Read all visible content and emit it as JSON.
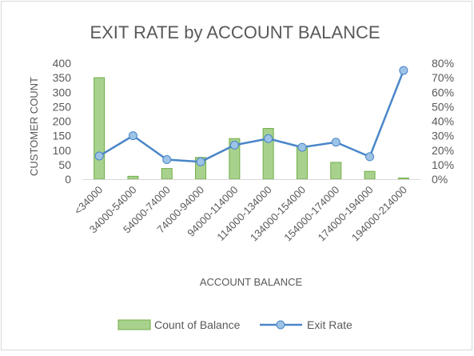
{
  "chart_data": {
    "type": "bar",
    "title": "EXIT RATE by ACCOUNT BALANCE",
    "xlabel": "ACCOUNT BALANCE",
    "ylabel": "CUSTOMER COUNT",
    "y2label": "",
    "categories": [
      "<34000",
      "34000-54000",
      "54000-74000",
      "74000-94000",
      "94000-114000",
      "114000-134000",
      "134000-154000",
      "154000-174000",
      "174000-194000",
      "194000-214000"
    ],
    "ylim": [
      0,
      400
    ],
    "yticks": [
      "0",
      "50",
      "100",
      "150",
      "200",
      "250",
      "300",
      "350",
      "400"
    ],
    "y2lim": [
      0,
      0.8
    ],
    "y2ticks": [
      "0%",
      "10%",
      "20%",
      "30%",
      "40%",
      "50%",
      "60%",
      "70%",
      "80%"
    ],
    "grid": false,
    "legend_position": "bottom",
    "series": [
      {
        "name": "Count of Balance",
        "type": "bar",
        "axis": "left",
        "color": "#a9d18e",
        "edge_color": "#70ad47",
        "values": [
          350,
          10,
          37,
          75,
          140,
          175,
          115,
          58,
          27,
          4
        ]
      },
      {
        "name": "Exit Rate",
        "type": "line",
        "axis": "right",
        "color": "#4a86c8",
        "marker_color": "#9dc3e6",
        "values": [
          0.16,
          0.3,
          0.135,
          0.12,
          0.235,
          0.28,
          0.22,
          0.255,
          0.155,
          0.75
        ]
      }
    ]
  }
}
